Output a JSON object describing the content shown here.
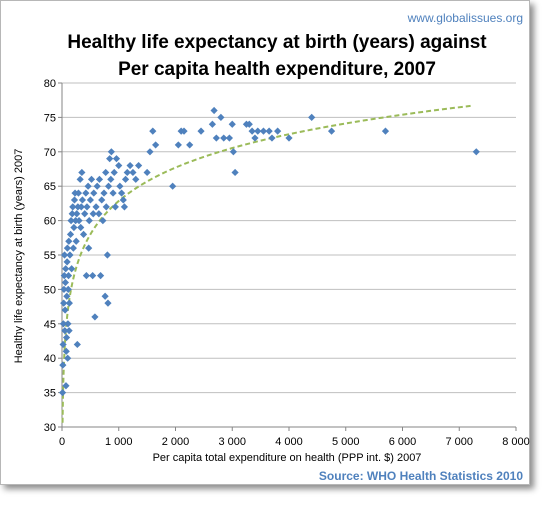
{
  "watermark": "www.globalissues.org",
  "source_note": "Source: WHO Health Statistics 2010",
  "colors": {
    "point": "#4f81bd",
    "trend": "#9bbb59",
    "grid": "#bfbfbf",
    "axis": "#868686",
    "source": "#4f81bd"
  },
  "chart_data": {
    "type": "scatter",
    "title_lines": [
      "Healthy life expectancy at birth (years)  against",
      "Per capita health expenditure, 2007"
    ],
    "xlabel": "Per capita total expenditure on health (PPP int. $) 2007",
    "ylabel": "Healthy life expectancy at birth (years)  2007",
    "xlim": [
      0,
      8000
    ],
    "ylim": [
      30,
      80
    ],
    "x_ticks": [
      0,
      1000,
      2000,
      3000,
      4000,
      5000,
      6000,
      7000,
      8000
    ],
    "x_tick_labels": [
      "0",
      "1 000",
      "2 000",
      "3 000",
      "4 000",
      "5 000",
      "6 000",
      "7 000",
      "8 000"
    ],
    "y_ticks": [
      30,
      35,
      40,
      45,
      50,
      55,
      60,
      65,
      70,
      75,
      80
    ],
    "y_tick_labels": [
      "30",
      "35",
      "40",
      "45",
      "50",
      "55",
      "60",
      "65",
      "70",
      "75",
      "80"
    ],
    "grid": "horizontal",
    "trendline": {
      "type": "logarithmic",
      "style": "dashed",
      "x_range": [
        10,
        7200
      ],
      "a": 7.0,
      "b": 14.5
    },
    "points": [
      {
        "x": 10,
        "y": 35
      },
      {
        "x": 15,
        "y": 39
      },
      {
        "x": 20,
        "y": 42
      },
      {
        "x": 25,
        "y": 45
      },
      {
        "x": 30,
        "y": 48
      },
      {
        "x": 35,
        "y": 50
      },
      {
        "x": 40,
        "y": 52
      },
      {
        "x": 45,
        "y": 55
      },
      {
        "x": 50,
        "y": 44
      },
      {
        "x": 55,
        "y": 47
      },
      {
        "x": 60,
        "y": 51
      },
      {
        "x": 65,
        "y": 53
      },
      {
        "x": 70,
        "y": 36
      },
      {
        "x": 75,
        "y": 41
      },
      {
        "x": 80,
        "y": 43
      },
      {
        "x": 85,
        "y": 49
      },
      {
        "x": 90,
        "y": 54
      },
      {
        "x": 95,
        "y": 56
      },
      {
        "x": 100,
        "y": 40
      },
      {
        "x": 105,
        "y": 45
      },
      {
        "x": 110,
        "y": 50
      },
      {
        "x": 115,
        "y": 52
      },
      {
        "x": 120,
        "y": 57
      },
      {
        "x": 125,
        "y": 44
      },
      {
        "x": 130,
        "y": 48
      },
      {
        "x": 140,
        "y": 55
      },
      {
        "x": 150,
        "y": 58
      },
      {
        "x": 160,
        "y": 60
      },
      {
        "x": 170,
        "y": 53
      },
      {
        "x": 180,
        "y": 61
      },
      {
        "x": 190,
        "y": 62
      },
      {
        "x": 200,
        "y": 56
      },
      {
        "x": 210,
        "y": 59
      },
      {
        "x": 220,
        "y": 63
      },
      {
        "x": 230,
        "y": 64
      },
      {
        "x": 240,
        "y": 60
      },
      {
        "x": 250,
        "y": 57
      },
      {
        "x": 260,
        "y": 61
      },
      {
        "x": 270,
        "y": 42
      },
      {
        "x": 280,
        "y": 62
      },
      {
        "x": 290,
        "y": 64
      },
      {
        "x": 300,
        "y": 60
      },
      {
        "x": 320,
        "y": 66
      },
      {
        "x": 330,
        "y": 59
      },
      {
        "x": 340,
        "y": 62
      },
      {
        "x": 350,
        "y": 67
      },
      {
        "x": 360,
        "y": 63
      },
      {
        "x": 380,
        "y": 58
      },
      {
        "x": 400,
        "y": 61
      },
      {
        "x": 420,
        "y": 64
      },
      {
        "x": 430,
        "y": 52
      },
      {
        "x": 440,
        "y": 62
      },
      {
        "x": 460,
        "y": 65
      },
      {
        "x": 470,
        "y": 56
      },
      {
        "x": 480,
        "y": 60
      },
      {
        "x": 500,
        "y": 63
      },
      {
        "x": 520,
        "y": 66
      },
      {
        "x": 540,
        "y": 52
      },
      {
        "x": 550,
        "y": 61
      },
      {
        "x": 560,
        "y": 64
      },
      {
        "x": 580,
        "y": 46
      },
      {
        "x": 600,
        "y": 62
      },
      {
        "x": 620,
        "y": 65
      },
      {
        "x": 650,
        "y": 61
      },
      {
        "x": 660,
        "y": 66
      },
      {
        "x": 680,
        "y": 52
      },
      {
        "x": 700,
        "y": 63
      },
      {
        "x": 720,
        "y": 60
      },
      {
        "x": 740,
        "y": 64
      },
      {
        "x": 760,
        "y": 49
      },
      {
        "x": 770,
        "y": 67
      },
      {
        "x": 780,
        "y": 62
      },
      {
        "x": 800,
        "y": 55
      },
      {
        "x": 810,
        "y": 48
      },
      {
        "x": 820,
        "y": 65
      },
      {
        "x": 840,
        "y": 69
      },
      {
        "x": 860,
        "y": 66
      },
      {
        "x": 870,
        "y": 70
      },
      {
        "x": 900,
        "y": 64
      },
      {
        "x": 920,
        "y": 67
      },
      {
        "x": 940,
        "y": 62
      },
      {
        "x": 960,
        "y": 69
      },
      {
        "x": 1000,
        "y": 68
      },
      {
        "x": 1020,
        "y": 65
      },
      {
        "x": 1050,
        "y": 64
      },
      {
        "x": 1080,
        "y": 63
      },
      {
        "x": 1100,
        "y": 62
      },
      {
        "x": 1120,
        "y": 66
      },
      {
        "x": 1150,
        "y": 67
      },
      {
        "x": 1200,
        "y": 68
      },
      {
        "x": 1250,
        "y": 67
      },
      {
        "x": 1300,
        "y": 66
      },
      {
        "x": 1350,
        "y": 68
      },
      {
        "x": 1500,
        "y": 67
      },
      {
        "x": 1550,
        "y": 70
      },
      {
        "x": 1600,
        "y": 73
      },
      {
        "x": 1650,
        "y": 71
      },
      {
        "x": 1950,
        "y": 65
      },
      {
        "x": 2050,
        "y": 71
      },
      {
        "x": 2100,
        "y": 73
      },
      {
        "x": 2150,
        "y": 73
      },
      {
        "x": 2250,
        "y": 71
      },
      {
        "x": 2450,
        "y": 73
      },
      {
        "x": 2650,
        "y": 74
      },
      {
        "x": 2680,
        "y": 76
      },
      {
        "x": 2720,
        "y": 72
      },
      {
        "x": 2800,
        "y": 75
      },
      {
        "x": 2850,
        "y": 72
      },
      {
        "x": 2950,
        "y": 72
      },
      {
        "x": 3000,
        "y": 74
      },
      {
        "x": 3020,
        "y": 70
      },
      {
        "x": 3050,
        "y": 67
      },
      {
        "x": 3250,
        "y": 74
      },
      {
        "x": 3300,
        "y": 74
      },
      {
        "x": 3350,
        "y": 73
      },
      {
        "x": 3400,
        "y": 72
      },
      {
        "x": 3450,
        "y": 73
      },
      {
        "x": 3550,
        "y": 73
      },
      {
        "x": 3650,
        "y": 73
      },
      {
        "x": 3700,
        "y": 72
      },
      {
        "x": 3800,
        "y": 73
      },
      {
        "x": 4000,
        "y": 72
      },
      {
        "x": 4400,
        "y": 75
      },
      {
        "x": 4750,
        "y": 73
      },
      {
        "x": 5700,
        "y": 73
      },
      {
        "x": 7300,
        "y": 70
      }
    ]
  }
}
